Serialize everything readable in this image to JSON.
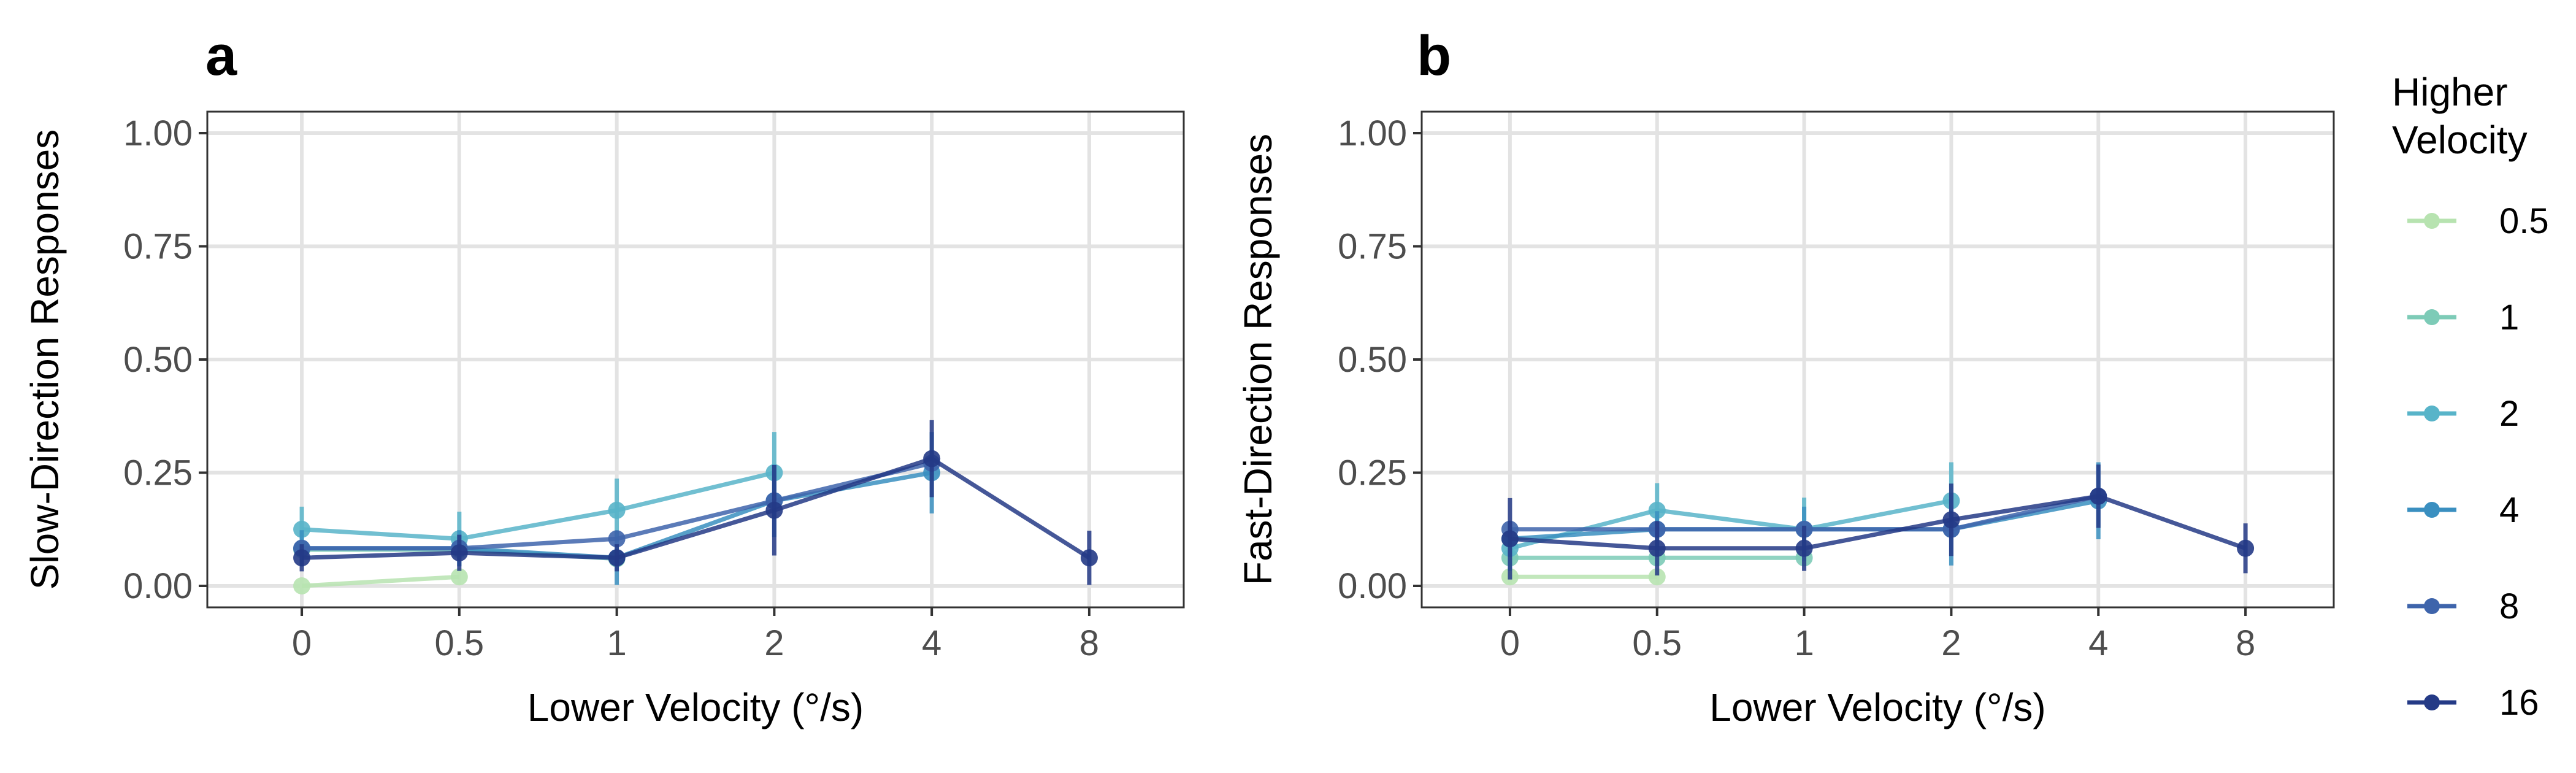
{
  "figure": {
    "legend": {
      "title_line1": "Higher",
      "title_line2": "Velocity",
      "position": "right"
    }
  },
  "series_colors": {
    "0.5": "#b7e3b0",
    "1": "#7dcbb7",
    "2": "#58b4c9",
    "4": "#3a8fc0",
    "8": "#3e64ab",
    "16": "#243a86"
  },
  "chart_data": [
    {
      "panel": "a",
      "type": "line",
      "xlabel": "Lower Velocity (°/s)",
      "ylabel": "Slow-Direction Responses",
      "categories": [
        "0",
        "0.5",
        "1",
        "2",
        "4",
        "8"
      ],
      "ylim": [
        0,
        1
      ],
      "yticks": [
        "0.00",
        "0.25",
        "0.50",
        "0.75",
        "1.00"
      ],
      "grid": true,
      "error_bars": true,
      "series": [
        {
          "name": "0.5",
          "values": [
            0.0,
            0.02,
            null,
            null,
            null,
            null
          ],
          "err": [
            0.0,
            0.0,
            null,
            null,
            null,
            null
          ]
        },
        {
          "name": "1",
          "values": [
            0.08,
            0.08,
            0.06,
            null,
            null,
            null
          ],
          "err": [
            0.0,
            0.0,
            0.0,
            null,
            null,
            null
          ]
        },
        {
          "name": "2",
          "values": [
            0.125,
            0.104,
            0.167,
            0.25,
            null,
            null
          ],
          "err": [
            0.05,
            0.06,
            0.07,
            0.09,
            null,
            null
          ]
        },
        {
          "name": "4",
          "values": [
            0.083,
            0.083,
            0.062,
            0.188,
            0.25,
            null
          ],
          "err": [
            0.04,
            0.04,
            0.06,
            0.08,
            0.09,
            null
          ]
        },
        {
          "name": "8",
          "values": [
            0.083,
            0.083,
            0.104,
            0.188,
            0.271,
            null
          ],
          "err": [
            0.0,
            0.0,
            0.0,
            0.0,
            0.0,
            null
          ]
        },
        {
          "name": "16",
          "values": [
            0.062,
            0.073,
            0.062,
            0.167,
            0.281,
            0.062
          ],
          "err": [
            0.03,
            0.04,
            0.03,
            0.1,
            0.085,
            0.06
          ]
        }
      ]
    },
    {
      "panel": "b",
      "type": "line",
      "xlabel": "Lower Velocity (°/s)",
      "ylabel": "Fast-Direction Responses",
      "categories": [
        "0",
        "0.5",
        "1",
        "2",
        "4",
        "8"
      ],
      "ylim": [
        0,
        1
      ],
      "yticks": [
        "0.00",
        "0.25",
        "0.50",
        "0.75",
        "1.00"
      ],
      "grid": true,
      "error_bars": true,
      "series": [
        {
          "name": "0.5",
          "values": [
            0.02,
            0.02,
            null,
            null,
            null,
            null
          ],
          "err": [
            0.0,
            0.0,
            null,
            null,
            null,
            null
          ]
        },
        {
          "name": "1",
          "values": [
            0.062,
            0.062,
            0.062,
            null,
            null,
            null
          ],
          "err": [
            0.0,
            0.0,
            0.0,
            null,
            null,
            null
          ]
        },
        {
          "name": "2",
          "values": [
            0.083,
            0.167,
            0.125,
            0.188,
            null,
            null
          ],
          "err": [
            0.05,
            0.06,
            0.07,
            0.085,
            null,
            null
          ]
        },
        {
          "name": "4",
          "values": [
            0.104,
            0.125,
            0.125,
            0.125,
            0.188,
            null
          ],
          "err": [
            0.04,
            0.04,
            0.05,
            0.08,
            0.085,
            null
          ]
        },
        {
          "name": "8",
          "values": [
            0.125,
            0.125,
            0.125,
            0.125,
            0.198,
            null
          ],
          "err": [
            0.0,
            0.0,
            0.0,
            0.0,
            0.0,
            null
          ]
        },
        {
          "name": "16",
          "values": [
            0.104,
            0.083,
            0.083,
            0.146,
            0.198,
            0.083
          ],
          "err": [
            0.09,
            0.06,
            0.05,
            0.08,
            0.07,
            0.055
          ]
        }
      ]
    }
  ]
}
